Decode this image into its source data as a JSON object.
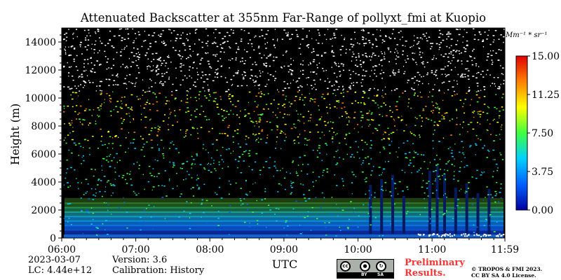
{
  "chart_data": {
    "type": "heatmap",
    "title": "Attenuated Backscatter at 355nm Far-Range of pollyxt_fmi at Kuopio",
    "xlabel": "UTC",
    "ylabel": "Height (m)",
    "x_range": [
      "06:00",
      "11:59"
    ],
    "x_ticks": [
      "06:00",
      "07:00",
      "08:00",
      "09:00",
      "10:00",
      "11:00",
      "11:59"
    ],
    "ylim": [
      0,
      15000
    ],
    "y_ticks": [
      "0",
      "2000",
      "4000",
      "6000",
      "8000",
      "10000",
      "12000",
      "14000"
    ],
    "colorbar": {
      "unit": "Mm⁻¹ * sr⁻¹",
      "range": [
        0.0,
        15.0
      ],
      "ticks": [
        "0.00",
        "3.75",
        "7.50",
        "11.25",
        "15.00"
      ],
      "colormap": [
        "#0000a0",
        "#0060ff",
        "#00d0ff",
        "#40ff40",
        "#ffff00",
        "#ff8000",
        "#e00000"
      ]
    },
    "background_color": "#000000",
    "grid": false
  },
  "footer": {
    "date": "2023-03-07",
    "lc": "LC: 4.44e+12",
    "version": "Version: 3.6",
    "calibration": "Calibration: History",
    "preliminary": [
      "Preliminary",
      "Results."
    ],
    "copyright": [
      "© TROPOS & FMI 2023.",
      "CC BY SA 4.0 License."
    ],
    "license_badge": {
      "cc": "cc",
      "by": "BY",
      "sa": "SA",
      "icon": "cc-by-sa-icon"
    }
  }
}
